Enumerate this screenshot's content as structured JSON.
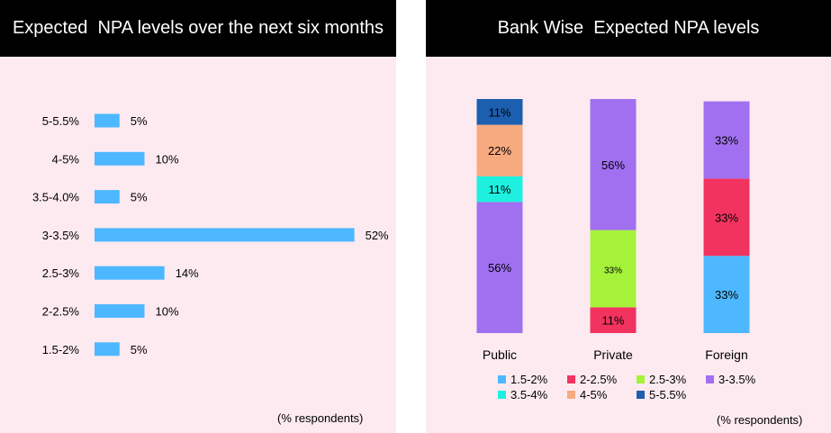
{
  "left_panel": {
    "note": "(% respondents)"
  },
  "right_panel": {
    "note": "(% respondents)"
  },
  "chart_data": [
    {
      "type": "bar",
      "orientation": "horizontal",
      "title": "Expected  NPA levels over the next six months",
      "categories": [
        "5-5.5%",
        "4-5%",
        "3.5-4.0%",
        "3-3.5%",
        "2.5-3%",
        "2-2.5%",
        "1.5-2%"
      ],
      "values": [
        5,
        10,
        5,
        52,
        14,
        10,
        5
      ],
      "value_suffix": "%",
      "color": "#4db8ff",
      "grid": false
    },
    {
      "type": "bar",
      "stacked": true,
      "title": "Bank Wise  Expected NPA levels",
      "categories": [
        "Public",
        "Private",
        "Foreign"
      ],
      "series": [
        {
          "name": "1.5-2%",
          "color": "#4db8ff",
          "values": [
            0,
            0,
            33
          ]
        },
        {
          "name": "2-2.5%",
          "color": "#f2335f",
          "values": [
            0,
            11,
            33
          ]
        },
        {
          "name": "2.5-3%",
          "color": "#a6f23a",
          "values": [
            0,
            33,
            0
          ]
        },
        {
          "name": "3-3.5%",
          "color": "#a070f0",
          "values": [
            56,
            56,
            33
          ]
        },
        {
          "name": "3.5-4%",
          "color": "#1ef0e0",
          "values": [
            11,
            0,
            0
          ]
        },
        {
          "name": "4-5%",
          "color": "#f7a97f",
          "values": [
            22,
            0,
            0
          ]
        },
        {
          "name": "5-5.5%",
          "color": "#1c5fb0",
          "values": [
            11,
            0,
            0
          ]
        }
      ],
      "ylim": [
        0,
        100
      ],
      "legend": "bottom",
      "grid": false
    }
  ]
}
